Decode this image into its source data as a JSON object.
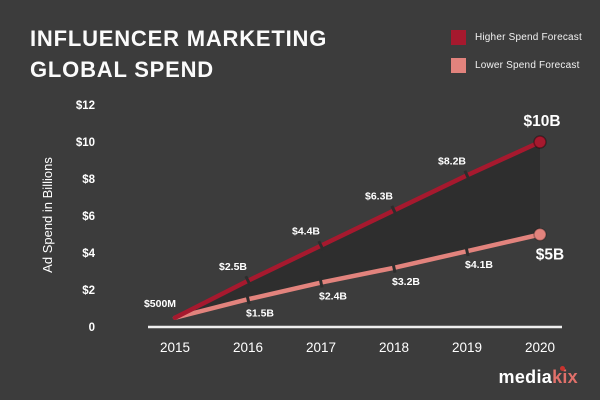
{
  "background": "#3c3c3c",
  "title": {
    "line1": "INFLUENCER MARKETING",
    "line2": "GLOBAL SPEND"
  },
  "legend": [
    {
      "label": "Higher Spend Forecast",
      "color": "#a6192e"
    },
    {
      "label": "Lower Spend Forecast",
      "color": "#e2837d"
    }
  ],
  "chart_data": {
    "type": "line",
    "categories": [
      "2015",
      "2016",
      "2017",
      "2018",
      "2019",
      "2020"
    ],
    "ylabel": "Ad Spend in Billions",
    "ylim": [
      0,
      12
    ],
    "yticks": [
      0,
      2,
      4,
      6,
      8,
      10,
      12
    ],
    "ytick_labels": [
      "0",
      "$2",
      "$4",
      "$6",
      "$8",
      "$10",
      "$12"
    ],
    "grid": false,
    "legend_position": "top-right",
    "series": [
      {
        "name": "Higher Spend Forecast",
        "color": "#a6192e",
        "values": [
          0.5,
          2.5,
          4.4,
          6.3,
          8.2,
          10
        ],
        "labels": [
          "$500M",
          "$2.5B",
          "$4.4B",
          "$6.3B",
          "$8.2B",
          "$10B"
        ]
      },
      {
        "name": "Lower Spend Forecast",
        "color": "#e2837d",
        "values": [
          0.5,
          1.5,
          2.4,
          3.2,
          4.1,
          5
        ],
        "labels": [
          "",
          "$1.5B",
          "$2.4B",
          "$3.2B",
          "$4.1B",
          "$5B"
        ]
      }
    ],
    "area_between_series": true
  },
  "logo": {
    "part1": "media",
    "part2": "kix"
  }
}
